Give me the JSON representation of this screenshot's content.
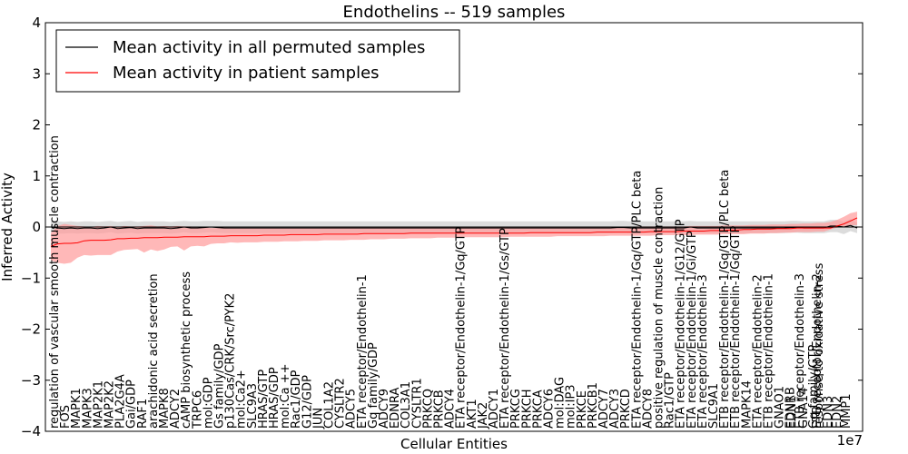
{
  "chart_data": {
    "type": "line",
    "title": "Endothelins -- 519 samples",
    "xlabel": "Cellular Entities",
    "ylabel": "Inferred Activity",
    "x_offset_text": "1e7",
    "ylim": [
      -4,
      4
    ],
    "y_ticks": [
      -4,
      -3,
      -2,
      -1,
      0,
      1,
      2,
      3,
      4
    ],
    "legend_position": "top-left",
    "series": [
      {
        "name": "Mean activity in all permuted samples",
        "color": "#000000",
        "band_color": "#c0c0c0",
        "mean": [
          0,
          -0.02,
          -0.03,
          -0.02,
          -0.03,
          -0.02,
          -0.02,
          -0.03,
          -0.02,
          0,
          -0.03,
          -0.02,
          -0.01,
          -0.03,
          -0.02,
          -0.02,
          -0.02,
          -0.02,
          -0.03,
          -0.02,
          0,
          -0.02,
          -0.02,
          -0.01,
          0,
          -0.01,
          -0.02,
          -0.02,
          -0.02,
          -0.02,
          -0.02,
          -0.02,
          -0.02,
          -0.02,
          -0.02,
          -0.02,
          -0.02,
          -0.02,
          -0.02,
          -0.02,
          -0.02,
          -0.02,
          -0.02,
          -0.02,
          -0.02,
          -0.02,
          -0.02,
          -0.02,
          -0.02,
          -0.02,
          -0.02,
          -0.02,
          -0.02,
          -0.02,
          -0.02,
          -0.02,
          -0.02,
          -0.02,
          -0.02,
          -0.02,
          -0.02,
          -0.02,
          -0.02,
          -0.02,
          -0.02,
          -0.02,
          -0.02,
          -0.02,
          -0.02,
          -0.02,
          -0.02,
          -0.02,
          -0.02,
          -0.02,
          -0.02,
          -0.02,
          -0.02,
          -0.02,
          -0.02,
          -0.02,
          -0.02,
          -0.02,
          -0.02,
          -0.02,
          -0.02,
          -0.01,
          -0.01,
          -0.02,
          -0.02,
          -0.02,
          -0.02,
          -0.02,
          -0.02,
          -0.02,
          -0.02,
          -0.02,
          0,
          -0.02,
          -0.02,
          -0.02,
          -0.02,
          -0.02,
          -0.02,
          -0.02,
          -0.02,
          -0.02,
          -0.02,
          -0.02,
          -0.02,
          -0.02,
          -0.02,
          -0.01,
          -0.01,
          -0.02,
          -0.02,
          -0.02,
          -0.02,
          0.02,
          0.02,
          0,
          0.03,
          -0.02
        ],
        "band_lower": [
          -0.12,
          -0.13,
          -0.13,
          -0.12,
          -0.13,
          -0.12,
          -0.12,
          -0.13,
          -0.12,
          -0.1,
          -0.13,
          -0.12,
          -0.11,
          -0.13,
          -0.12,
          -0.12,
          -0.12,
          -0.12,
          -0.13,
          -0.12,
          -0.1,
          -0.12,
          -0.12,
          -0.11,
          -0.1,
          -0.11,
          -0.12,
          -0.12,
          -0.12,
          -0.12,
          -0.12,
          -0.12,
          -0.12,
          -0.12,
          -0.12,
          -0.12,
          -0.12,
          -0.12,
          -0.12,
          -0.12,
          -0.12,
          -0.12,
          -0.12,
          -0.12,
          -0.12,
          -0.12,
          -0.12,
          -0.12,
          -0.12,
          -0.12,
          -0.12,
          -0.12,
          -0.12,
          -0.12,
          -0.12,
          -0.12,
          -0.12,
          -0.12,
          -0.12,
          -0.12,
          -0.12,
          -0.12,
          -0.12,
          -0.12,
          -0.12,
          -0.12,
          -0.12,
          -0.12,
          -0.12,
          -0.12,
          -0.12,
          -0.12,
          -0.12,
          -0.12,
          -0.12,
          -0.12,
          -0.12,
          -0.12,
          -0.12,
          -0.12,
          -0.12,
          -0.12,
          -0.12,
          -0.12,
          -0.12,
          -0.11,
          -0.11,
          -0.12,
          -0.12,
          -0.12,
          -0.12,
          -0.12,
          -0.12,
          -0.12,
          -0.12,
          -0.12,
          -0.1,
          -0.12,
          -0.12,
          -0.12,
          -0.12,
          -0.12,
          -0.12,
          -0.12,
          -0.12,
          -0.12,
          -0.12,
          -0.12,
          -0.12,
          -0.12,
          -0.12,
          -0.11,
          -0.11,
          -0.12,
          -0.12,
          -0.12,
          -0.12,
          -0.1,
          -0.1,
          -0.14,
          -0.08,
          -0.12
        ],
        "band_upper": [
          0.12,
          0.11,
          0.1,
          0.11,
          0.1,
          0.11,
          0.11,
          0.1,
          0.11,
          0.12,
          0.1,
          0.11,
          0.12,
          0.1,
          0.11,
          0.11,
          0.11,
          0.11,
          0.1,
          0.11,
          0.12,
          0.11,
          0.11,
          0.12,
          0.12,
          0.12,
          0.11,
          0.11,
          0.11,
          0.11,
          0.11,
          0.11,
          0.11,
          0.11,
          0.11,
          0.11,
          0.11,
          0.11,
          0.11,
          0.11,
          0.11,
          0.11,
          0.11,
          0.11,
          0.11,
          0.11,
          0.11,
          0.11,
          0.11,
          0.11,
          0.11,
          0.11,
          0.11,
          0.11,
          0.11,
          0.11,
          0.11,
          0.11,
          0.11,
          0.11,
          0.11,
          0.11,
          0.11,
          0.11,
          0.11,
          0.11,
          0.11,
          0.11,
          0.11,
          0.11,
          0.11,
          0.11,
          0.11,
          0.11,
          0.11,
          0.11,
          0.11,
          0.11,
          0.11,
          0.11,
          0.11,
          0.11,
          0.11,
          0.11,
          0.11,
          0.12,
          0.12,
          0.11,
          0.11,
          0.11,
          0.11,
          0.11,
          0.11,
          0.11,
          0.11,
          0.11,
          0.12,
          0.11,
          0.11,
          0.11,
          0.11,
          0.11,
          0.11,
          0.11,
          0.11,
          0.11,
          0.11,
          0.11,
          0.11,
          0.11,
          0.11,
          0.12,
          0.12,
          0.11,
          0.11,
          0.11,
          0.11,
          0.14,
          0.14,
          0.1,
          0.16,
          0.08
        ]
      },
      {
        "name": "Mean activity in patient samples",
        "color": "#ff0000",
        "band_color": "#ff9a9a",
        "mean": [
          -0.38,
          -0.33,
          -0.32,
          -0.32,
          -0.31,
          -0.27,
          -0.26,
          -0.26,
          -0.26,
          -0.25,
          -0.23,
          -0.23,
          -0.22,
          -0.22,
          -0.21,
          -0.21,
          -0.21,
          -0.2,
          -0.2,
          -0.2,
          -0.19,
          -0.19,
          -0.19,
          -0.19,
          -0.18,
          -0.18,
          -0.18,
          -0.17,
          -0.17,
          -0.17,
          -0.17,
          -0.17,
          -0.16,
          -0.16,
          -0.16,
          -0.16,
          -0.15,
          -0.15,
          -0.15,
          -0.15,
          -0.15,
          -0.14,
          -0.14,
          -0.14,
          -0.14,
          -0.14,
          -0.14,
          -0.13,
          -0.13,
          -0.13,
          -0.13,
          -0.13,
          -0.13,
          -0.13,
          -0.12,
          -0.12,
          -0.12,
          -0.12,
          -0.12,
          -0.12,
          -0.12,
          -0.12,
          -0.12,
          -0.12,
          -0.12,
          -0.12,
          -0.12,
          -0.12,
          -0.12,
          -0.12,
          -0.12,
          -0.12,
          -0.11,
          -0.11,
          -0.11,
          -0.11,
          -0.11,
          -0.11,
          -0.11,
          -0.11,
          -0.11,
          -0.11,
          -0.1,
          -0.1,
          -0.1,
          -0.1,
          -0.1,
          -0.1,
          -0.1,
          -0.1,
          -0.09,
          -0.09,
          -0.09,
          -0.09,
          -0.09,
          -0.08,
          -0.08,
          -0.08,
          -0.08,
          -0.07,
          -0.07,
          -0.07,
          -0.06,
          -0.06,
          -0.05,
          -0.05,
          -0.04,
          -0.04,
          -0.04,
          -0.03,
          -0.03,
          -0.03,
          -0.02,
          -0.02,
          -0.02,
          -0.02,
          -0.02,
          -0.02,
          0.02,
          0.06,
          0.12,
          0.18,
          0.13
        ],
        "band_lower": [
          -0.65,
          -0.7,
          -0.72,
          -0.7,
          -0.6,
          -0.55,
          -0.56,
          -0.55,
          -0.55,
          -0.55,
          -0.48,
          -0.45,
          -0.44,
          -0.43,
          -0.5,
          -0.44,
          -0.47,
          -0.44,
          -0.39,
          -0.38,
          -0.46,
          -0.38,
          -0.37,
          -0.38,
          -0.33,
          -0.32,
          -0.32,
          -0.3,
          -0.31,
          -0.3,
          -0.3,
          -0.3,
          -0.29,
          -0.29,
          -0.29,
          -0.28,
          -0.28,
          -0.28,
          -0.27,
          -0.27,
          -0.27,
          -0.26,
          -0.26,
          -0.26,
          -0.26,
          -0.25,
          -0.25,
          -0.25,
          -0.24,
          -0.24,
          -0.24,
          -0.23,
          -0.23,
          -0.23,
          -0.22,
          -0.22,
          -0.22,
          -0.22,
          -0.21,
          -0.21,
          -0.21,
          -0.21,
          -0.2,
          -0.2,
          -0.2,
          -0.2,
          -0.2,
          -0.2,
          -0.2,
          -0.19,
          -0.19,
          -0.19,
          -0.19,
          -0.19,
          -0.19,
          -0.19,
          -0.18,
          -0.18,
          -0.18,
          -0.18,
          -0.18,
          -0.18,
          -0.18,
          -0.18,
          -0.17,
          -0.17,
          -0.17,
          -0.17,
          -0.17,
          -0.17,
          -0.17,
          -0.16,
          -0.16,
          -0.16,
          -0.16,
          -0.16,
          -0.16,
          -0.15,
          -0.15,
          -0.15,
          -0.15,
          -0.14,
          -0.14,
          -0.14,
          -0.14,
          -0.13,
          -0.13,
          -0.13,
          -0.12,
          -0.12,
          -0.11,
          -0.11,
          -0.1,
          -0.1,
          -0.1,
          -0.09,
          -0.09,
          -0.05,
          -0.01,
          0.01,
          0.03,
          0.04
        ],
        "band_upper": [
          -0.12,
          0.02,
          0.06,
          0.04,
          0.02,
          0.01,
          0.0,
          0.02,
          0.01,
          0.02,
          0.0,
          0.02,
          0.01,
          0.01,
          0.02,
          0.03,
          0.01,
          0.02,
          0.01,
          0.02,
          0.01,
          0.01,
          0.0,
          0.0,
          -0.02,
          -0.02,
          -0.01,
          -0.02,
          -0.02,
          -0.02,
          -0.02,
          -0.02,
          -0.02,
          -0.02,
          -0.02,
          -0.02,
          -0.02,
          -0.02,
          -0.02,
          -0.02,
          -0.02,
          -0.01,
          -0.01,
          -0.01,
          -0.01,
          -0.01,
          -0.01,
          -0.01,
          -0.01,
          -0.01,
          -0.01,
          -0.01,
          -0.01,
          -0.01,
          -0.01,
          -0.01,
          -0.01,
          -0.01,
          -0.01,
          -0.01,
          -0.01,
          -0.01,
          -0.01,
          -0.01,
          -0.01,
          -0.01,
          -0.01,
          -0.01,
          -0.01,
          -0.01,
          -0.01,
          -0.01,
          -0.01,
          0.0,
          0.0,
          0.0,
          0.0,
          0.0,
          0.0,
          0.0,
          0.0,
          0.0,
          0.0,
          0.0,
          0.0,
          0.0,
          0.0,
          0.0,
          0.01,
          0.01,
          0.01,
          0.01,
          0.01,
          0.01,
          0.01,
          0.01,
          0.02,
          0.02,
          0.02,
          0.02,
          0.02,
          0.03,
          0.03,
          0.03,
          0.03,
          0.04,
          0.04,
          0.04,
          0.05,
          0.05,
          0.05,
          0.06,
          0.06,
          0.07,
          0.07,
          0.08,
          0.08,
          0.1,
          0.14,
          0.2,
          0.27,
          0.3
        ]
      }
    ],
    "annotations": [
      "regulation of vascular smooth muscle contraction",
      "FOS",
      "MAPK1",
      "MAPK3",
      "MAP2K1",
      "MAP2K2",
      "PLA2G4A",
      "Gai/GDP",
      "RAF1",
      "arachidonic acid secretion",
      "MAPK8",
      "ADCY2",
      "cAMP biosynthetic process",
      "TRPC6",
      "mol:GDP",
      "Gs family/GDP",
      "p130Cas/CRK/Src/PYK2",
      "mol:Ca2+",
      "SLC9A3",
      "HRAS/GTP",
      "HRAS/GDP",
      "mol:Ca ++",
      "Rac1/GDP",
      "G12/GDP",
      "JUN",
      "COL1A2",
      "CYSLTR2",
      "ADCY5",
      "ETA receptor/Endothelin-1",
      "Gq family/GDP",
      "ADCY9",
      "EDNRA",
      "COL3A1",
      "CYSLTR1",
      "PRKCQ",
      "PRKCB",
      "ADCY4",
      "ETA receptor/Endothelin-1/Gq/GTP",
      "AKT1",
      "JAK2",
      "ADCY1",
      "ETA receptor/Endothelin-1/Gs/GTP",
      "PRKCG",
      "PRKCH",
      "PRKCA",
      "ADCY6",
      "mol:DAG",
      "mol:IP3",
      "PRKCE",
      "PRKCB1",
      "ADCY7",
      "ADCY3",
      "PRKCD",
      "ETA receptor/Endothelin-1/Gq/GTP/PLC beta",
      "ADCY8",
      "positive regulation of muscle contraction",
      "Rac1/GTP",
      "ETA receptor/Endothelin-1/G12/GTP",
      "ETA receptor/Endothelin-1/Gi/GTP",
      "ETA receptor/Endothelin-3",
      "SLC9A1",
      "ETB receptor/Endothelin-1/Gq/GTP/PLC beta",
      "ETB receptor/Endothelin-1/Gq/GTP",
      "MAPK14",
      "ETA receptor/Endothelin-2",
      "ETB receptor/Endothelin-1",
      "GNAO1",
      "EDNRB",
      "EDN1",
      "GNA14",
      "ETB receptor/Endothelin-3",
      "Gq family/GTP",
      "ETB receptor/Endothelin-2",
      "response to oxidative stress",
      "EDN3",
      "EDN2",
      "MMP1"
    ]
  }
}
